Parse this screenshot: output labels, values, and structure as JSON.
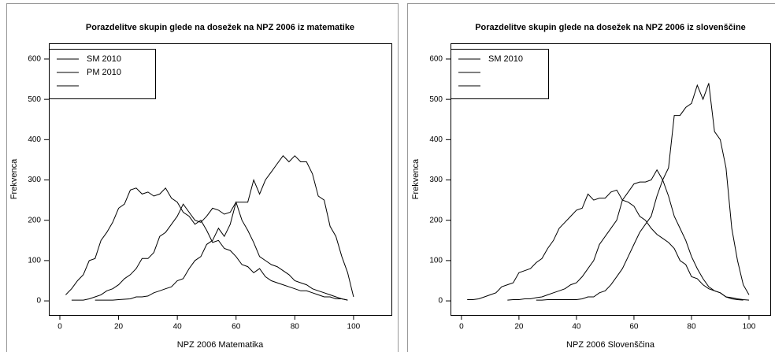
{
  "chart_data": [
    {
      "type": "line",
      "title": "Porazdelitve skupin glede na dosežek na NPZ 2006 iz matematike",
      "xlabel": "NPZ 2006 Matematika",
      "ylabel": "Frekvenca",
      "x": [
        0,
        2,
        4,
        6,
        8,
        10,
        12,
        14,
        16,
        18,
        20,
        22,
        24,
        26,
        28,
        30,
        32,
        34,
        36,
        38,
        40,
        42,
        44,
        46,
        48,
        50,
        52,
        54,
        56,
        58,
        60,
        62,
        64,
        66,
        68,
        70,
        72,
        74,
        76,
        78,
        80,
        82,
        84,
        86,
        88,
        90,
        92,
        94,
        96,
        98,
        100
      ],
      "series": [
        {
          "name": "SM 2010",
          "color": "#000000",
          "values": [
            null,
            15,
            30,
            50,
            65,
            100,
            105,
            150,
            170,
            195,
            230,
            240,
            275,
            280,
            265,
            270,
            260,
            265,
            280,
            255,
            245,
            220,
            210,
            190,
            200,
            175,
            145,
            150,
            130,
            125,
            110,
            90,
            85,
            70,
            80,
            60,
            50,
            45,
            40,
            35,
            30,
            25,
            25,
            20,
            15,
            10,
            10,
            5,
            5,
            2,
            null
          ]
        },
        {
          "name": "PM 2010",
          "color": "#000000",
          "values": [
            null,
            null,
            2,
            2,
            2,
            5,
            10,
            15,
            25,
            30,
            40,
            55,
            65,
            80,
            105,
            105,
            120,
            160,
            170,
            190,
            210,
            240,
            220,
            200,
            195,
            210,
            230,
            225,
            215,
            220,
            245,
            200,
            175,
            145,
            110,
            100,
            90,
            85,
            75,
            65,
            50,
            45,
            40,
            30,
            25,
            20,
            15,
            10,
            5,
            2,
            null
          ]
        },
        {
          "name": null,
          "color": "#000000",
          "values": [
            null,
            null,
            null,
            null,
            null,
            null,
            2,
            2,
            2,
            2,
            3,
            4,
            5,
            10,
            10,
            12,
            20,
            25,
            30,
            35,
            50,
            55,
            80,
            100,
            110,
            140,
            150,
            180,
            160,
            190,
            245,
            245,
            245,
            300,
            265,
            300,
            320,
            340,
            360,
            345,
            360,
            345,
            345,
            315,
            260,
            250,
            185,
            160,
            110,
            70,
            10
          ]
        }
      ],
      "xlim": [
        -3.75,
        112.9
      ],
      "ylim": [
        -35,
        639
      ],
      "xticks": [
        0,
        20,
        40,
        60,
        80,
        100
      ],
      "yticks": [
        0,
        100,
        200,
        300,
        400,
        500,
        600
      ],
      "legend": "top-left"
    },
    {
      "type": "line",
      "title": "Porazdelitve skupin glede na dosežek na NPZ 2006 iz slovenščine",
      "xlabel": "NPZ 2006 Slovenščina",
      "ylabel": "Frekvenca",
      "x": [
        0,
        2,
        4,
        6,
        8,
        10,
        12,
        14,
        16,
        18,
        20,
        22,
        24,
        26,
        28,
        30,
        32,
        34,
        36,
        38,
        40,
        42,
        44,
        46,
        48,
        50,
        52,
        54,
        56,
        58,
        60,
        62,
        64,
        66,
        68,
        70,
        72,
        74,
        76,
        78,
        80,
        82,
        84,
        86,
        88,
        90,
        92,
        94,
        96,
        98,
        100
      ],
      "series": [
        {
          "name": "SM 2010",
          "color": "#000000",
          "values": [
            null,
            3,
            3,
            5,
            10,
            15,
            20,
            35,
            40,
            45,
            70,
            75,
            80,
            95,
            105,
            130,
            150,
            180,
            195,
            210,
            225,
            230,
            265,
            250,
            255,
            255,
            270,
            275,
            250,
            245,
            235,
            210,
            200,
            180,
            165,
            155,
            145,
            130,
            100,
            90,
            60,
            55,
            40,
            30,
            25,
            20,
            10,
            8,
            5,
            3,
            2
          ]
        },
        {
          "name": null,
          "color": "#000000",
          "values": [
            null,
            null,
            null,
            null,
            null,
            null,
            null,
            null,
            2,
            3,
            3,
            5,
            5,
            8,
            10,
            15,
            20,
            25,
            30,
            40,
            45,
            60,
            80,
            100,
            140,
            160,
            180,
            200,
            250,
            270,
            290,
            295,
            295,
            300,
            325,
            300,
            260,
            210,
            180,
            150,
            110,
            80,
            55,
            35,
            25,
            20,
            10,
            5,
            3,
            2,
            null
          ]
        },
        {
          "name": null,
          "color": "#000000",
          "values": [
            null,
            null,
            null,
            null,
            null,
            null,
            null,
            null,
            null,
            null,
            null,
            null,
            null,
            2,
            2,
            3,
            3,
            3,
            3,
            3,
            3,
            5,
            10,
            10,
            20,
            25,
            40,
            60,
            80,
            110,
            140,
            170,
            190,
            210,
            260,
            300,
            330,
            460,
            460,
            480,
            490,
            535,
            500,
            540,
            420,
            400,
            330,
            180,
            100,
            40,
            15
          ]
        }
      ],
      "xlim": [
        -3.8,
        107.4
      ],
      "ylim": [
        -35,
        639
      ],
      "xticks": [
        0,
        20,
        40,
        60,
        80,
        100
      ],
      "yticks": [
        0,
        100,
        200,
        300,
        400,
        500,
        600
      ],
      "legend": "top-left"
    }
  ]
}
